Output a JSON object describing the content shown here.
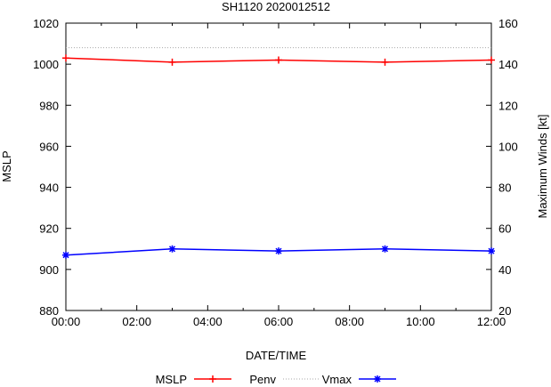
{
  "chart_data": {
    "type": "line",
    "title": "SH1120 2020012512",
    "xlabel": "DATE/TIME",
    "ylabel": "MSLP",
    "y2label": "Maximum Winds [kt]",
    "x": [
      "00:00",
      "03:00",
      "06:00",
      "09:00",
      "12:00"
    ],
    "x_hours": [
      0,
      3,
      6,
      9,
      12
    ],
    "xlim": [
      0,
      12
    ],
    "xticks": [
      "00:00",
      "02:00",
      "04:00",
      "06:00",
      "08:00",
      "10:00",
      "12:00"
    ],
    "ylim": [
      880,
      1020
    ],
    "yticks": [
      "880",
      "900",
      "920",
      "940",
      "960",
      "980",
      "1000",
      "1020"
    ],
    "y2lim": [
      20,
      160
    ],
    "y2ticks": [
      "20",
      "40",
      "60",
      "80",
      "100",
      "120",
      "140",
      "160"
    ],
    "series": [
      {
        "name": "MSLP",
        "axis": "left",
        "color": "#ff0000",
        "values": [
          1003,
          1001,
          1002,
          1001,
          1002
        ]
      },
      {
        "name": "Penv",
        "axis": "left",
        "color": "#aaaaaa",
        "style": "dotted",
        "values": [
          1008,
          1008,
          1008,
          1008,
          1008
        ]
      },
      {
        "name": "Vmax",
        "axis": "right",
        "color": "#0000ff",
        "values": [
          47,
          50,
          49,
          50,
          49
        ]
      }
    ],
    "legend_position": "bottom"
  }
}
